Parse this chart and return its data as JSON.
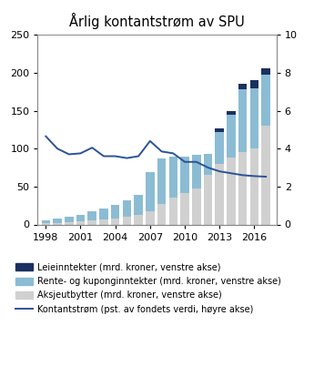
{
  "title": "Årlig kontantstrøm av SPU",
  "years": [
    1998,
    1999,
    2000,
    2001,
    2002,
    2003,
    2004,
    2005,
    2006,
    2007,
    2008,
    2009,
    2010,
    2011,
    2012,
    2013,
    2014,
    2015,
    2016,
    2017
  ],
  "aksjeutbytter": [
    1.5,
    2.0,
    3.5,
    4.5,
    6.0,
    7.0,
    8.0,
    10.0,
    13.0,
    17.0,
    27.0,
    36.0,
    42.0,
    47.0,
    65.0,
    80.0,
    88.0,
    95.0,
    100.0,
    130.0
  ],
  "rente": [
    4.0,
    5.5,
    6.5,
    8.0,
    12.0,
    14.0,
    18.0,
    22.0,
    26.0,
    52.0,
    60.0,
    53.0,
    47.0,
    45.0,
    28.0,
    42.0,
    57.0,
    83.0,
    80.0,
    68.0
  ],
  "leie": [
    0.0,
    0.0,
    0.0,
    0.0,
    0.0,
    0.0,
    0.0,
    0.0,
    0.0,
    0.0,
    0.0,
    0.0,
    0.0,
    0.0,
    0.0,
    5.0,
    5.0,
    8.0,
    10.0,
    8.0
  ],
  "cashflow_pct": [
    4.65,
    4.0,
    3.7,
    3.75,
    4.05,
    3.6,
    3.6,
    3.5,
    3.6,
    4.4,
    3.85,
    3.75,
    3.3,
    3.3,
    3.0,
    2.8,
    2.7,
    2.6,
    2.55,
    2.52
  ],
  "color_aksjeutbytter": "#d0d0d0",
  "color_rente": "#8bbcd4",
  "color_leie": "#1a3060",
  "color_line": "#2a5298",
  "ylim_left": [
    0,
    250
  ],
  "ylim_right": [
    0,
    10
  ],
  "yticks_left": [
    0,
    50,
    100,
    150,
    200,
    250
  ],
  "yticks_right": [
    0,
    2,
    4,
    6,
    8,
    10
  ],
  "legend_labels": [
    "Leieinntekter (mrd. kroner, venstre akse)",
    "Rente- og kuponginntekter (mrd. kroner, venstre akse)",
    "Aksjeutbytter (mrd. kroner, venstre akse)",
    "Kontantstrøm (pst. av fondets verdi, høyre akse)"
  ],
  "xlabel_ticks": [
    1998,
    2001,
    2004,
    2007,
    2010,
    2013,
    2016
  ]
}
